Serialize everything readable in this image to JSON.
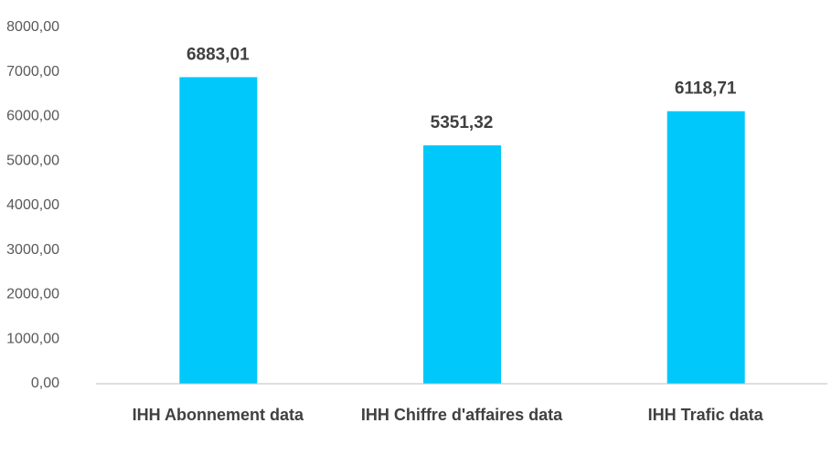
{
  "chart_data": {
    "type": "bar",
    "categories": [
      "IHH Abonnement data",
      "IHH Chiffre d'affaires data",
      "IHH Trafic data"
    ],
    "values": [
      6883.01,
      5351.32,
      6118.71
    ],
    "value_labels": [
      "6883,01",
      "5351,32",
      "6118,71"
    ],
    "color": "#00c8fa",
    "ylim": [
      0,
      8000
    ],
    "yticks": [
      {
        "value": 0,
        "label": "0,00"
      },
      {
        "value": 1000,
        "label": "1000,00"
      },
      {
        "value": 2000,
        "label": "2000,00"
      },
      {
        "value": 3000,
        "label": "3000,00"
      },
      {
        "value": 4000,
        "label": "4000,00"
      },
      {
        "value": 5000,
        "label": "5000,00"
      },
      {
        "value": 6000,
        "label": "6000,00"
      },
      {
        "value": 7000,
        "label": "7000,00"
      },
      {
        "value": 8000,
        "label": "8000,00"
      }
    ],
    "grid": false
  }
}
